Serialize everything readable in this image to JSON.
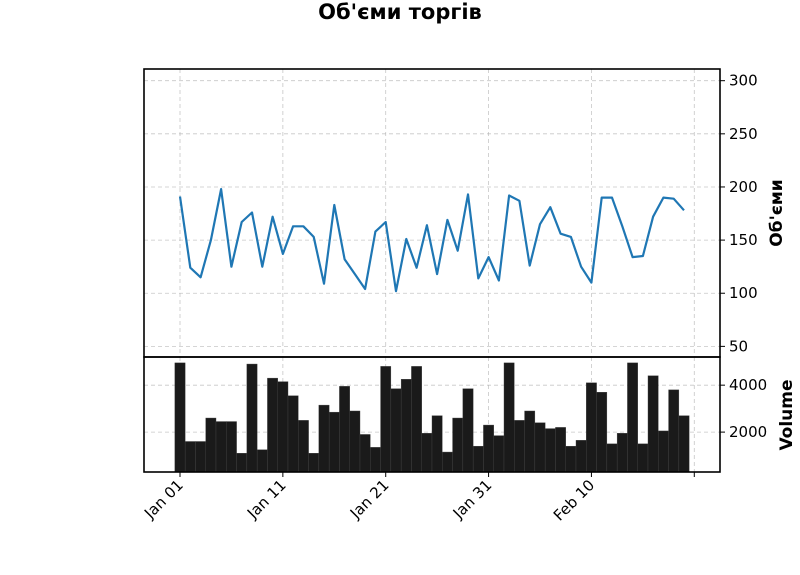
{
  "chart_data": [
    {
      "type": "line",
      "title": "Об'єми торгів",
      "ylabel": "Об'єми",
      "ylim": [
        40,
        311
      ],
      "yticks": [
        50,
        100,
        150,
        200,
        250,
        300
      ],
      "grid": true,
      "x_start": "2024-01-01",
      "series": [
        {
          "color": "#1f77b4",
          "values": [
            191,
            124,
            115,
            150,
            198,
            125,
            167,
            176,
            125,
            172,
            137,
            163,
            163,
            153,
            109,
            183,
            132,
            118,
            104,
            158,
            167,
            102,
            151,
            124,
            164,
            118,
            169,
            140,
            193,
            114,
            134,
            112,
            192,
            187,
            126,
            165,
            181,
            156,
            153,
            125,
            110,
            190,
            190,
            163,
            134,
            135,
            172,
            190,
            189,
            178
          ]
        }
      ]
    },
    {
      "type": "bar",
      "ylabel": "Volume",
      "ylim": [
        300,
        5200
      ],
      "yticks": [
        2000,
        4000
      ],
      "grid": true,
      "x_start": "2024-01-01",
      "series": [
        {
          "color": "#1a1a1a",
          "values": [
            4950,
            1600,
            1600,
            2600,
            2450,
            2450,
            1100,
            4900,
            1250,
            4300,
            4150,
            3550,
            2500,
            1100,
            3150,
            2850,
            3950,
            2900,
            1900,
            1350,
            4800,
            3850,
            4250,
            4800,
            1950,
            2700,
            1150,
            2600,
            3850,
            1400,
            2300,
            1850,
            4950,
            2500,
            2900,
            2400,
            2150,
            2200,
            1400,
            1650,
            4100,
            3700,
            1500,
            1950,
            4950,
            1500,
            4400,
            2050,
            3800,
            2700
          ]
        }
      ]
    }
  ],
  "x_axis": {
    "ticks": [
      {
        "date": "2024-01-01",
        "label": "Jan 01"
      },
      {
        "date": "2024-01-11",
        "label": "Jan 11"
      },
      {
        "date": "2024-01-21",
        "label": "Jan 21"
      },
      {
        "date": "2024-01-31",
        "label": "Jan 31"
      },
      {
        "date": "2024-02-10",
        "label": "Feb 10"
      },
      {
        "date": "2024-02-20",
        "label": ""
      }
    ],
    "xlim": [
      "2023-12-28T12:00",
      "2024-02-22T12:00"
    ]
  }
}
